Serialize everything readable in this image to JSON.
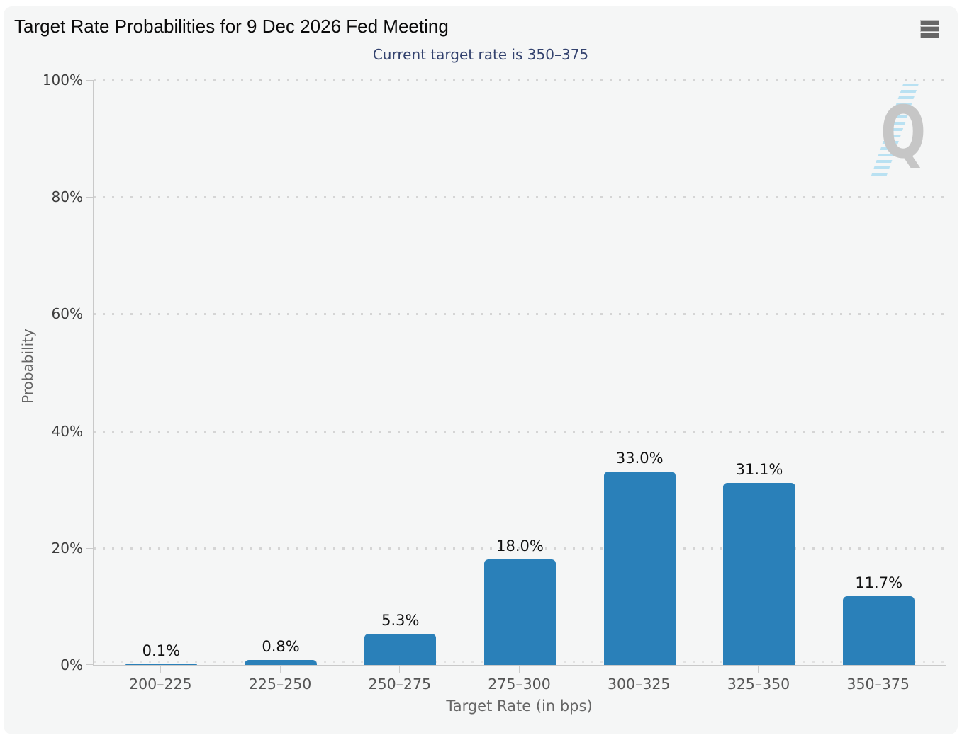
{
  "page": {
    "background": "#ffffff",
    "card_background": "#f5f6f6"
  },
  "header": {
    "menu_icon": "hamburger-menu-icon"
  },
  "chart_data": {
    "type": "bar",
    "title": "Target Rate Probabilities for 9 Dec 2026 Fed Meeting",
    "subtitle": "Current target rate is 350–375",
    "xlabel": "Target Rate (in bps)",
    "ylabel": "Probability",
    "categories": [
      "200–225",
      "225–250",
      "250–275",
      "275–300",
      "300–325",
      "325–350",
      "350–375"
    ],
    "values": [
      0.1,
      0.8,
      5.3,
      18.0,
      33.0,
      31.1,
      11.7
    ],
    "value_labels": [
      "0.1%",
      "0.8%",
      "5.3%",
      "18.0%",
      "33.0%",
      "31.1%",
      "11.7%"
    ],
    "ylim": [
      0,
      100
    ],
    "ytick_labels": [
      "100%",
      "80%",
      "60%",
      "40%",
      "20%",
      "0%"
    ],
    "grid": "dotted-horizontal",
    "legend": "none",
    "bar_color": "#2a80b9"
  },
  "watermark": {
    "letter": "Q",
    "letter_color": "#c6c6c6",
    "swoosh_color": "#a5daf0"
  },
  "colors": {
    "bar": "#2a80b9",
    "subtitle_text": "#33426e",
    "axis_line": "#c9c9c9",
    "gridline": "#d5d5d5",
    "ytick_label": "#3d3d3d",
    "category_label": "#555555",
    "axis_title": "#666666",
    "title_text": "#0b0b0b",
    "menu_icon": "#666666"
  }
}
